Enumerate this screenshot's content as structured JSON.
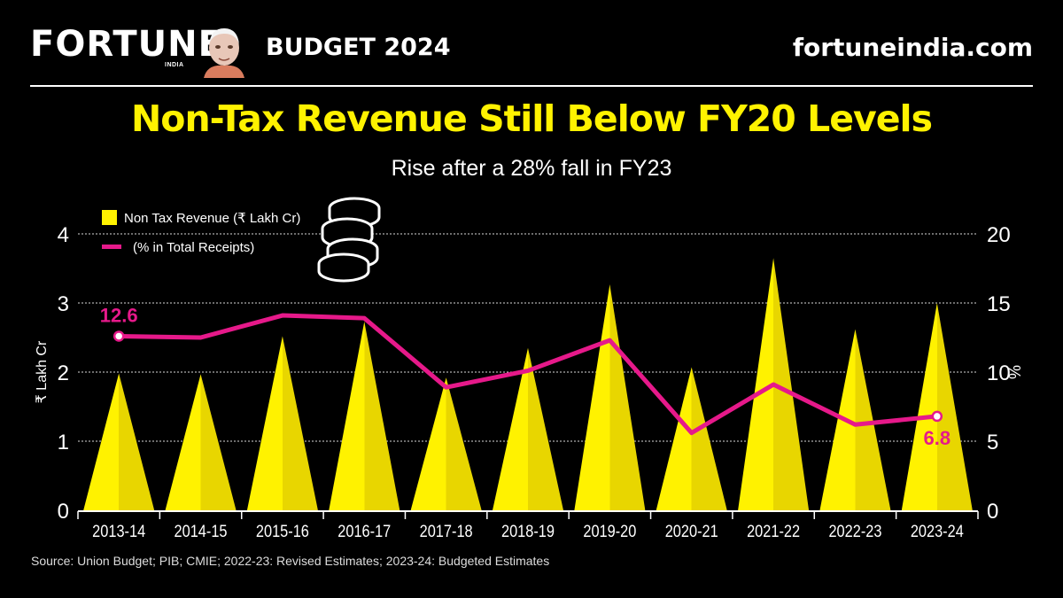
{
  "header": {
    "logo": "FORTUNE",
    "logo_sub": "INDIA",
    "budget_label": "BUDGET 2024",
    "site": "fortuneindia.com"
  },
  "colors": {
    "accent": "#fff200",
    "line": "#e6198a",
    "background": "#000000"
  },
  "source": "Source: Union Budget; PIB; CMIE; 2022-23: Revised Estimates; 2023-24: Budgeted Estimates",
  "chart_data": {
    "type": "bar",
    "title": "Non-Tax Revenue Still Below FY20 Levels",
    "subtitle": "Rise after a 28% fall in FY23",
    "categories": [
      "2013-14",
      "2014-15",
      "2015-16",
      "2016-17",
      "2017-18",
      "2018-19",
      "2019-20",
      "2020-21",
      "2021-22",
      "2022-23",
      "2023-24"
    ],
    "series": [
      {
        "name": "Non Tax Revenue  (₹ Lakh Cr)",
        "axis": "left",
        "style": "triangle",
        "values": [
          1.98,
          1.97,
          2.52,
          2.73,
          1.92,
          2.35,
          3.27,
          2.07,
          3.65,
          2.62,
          3.0
        ]
      },
      {
        "name": "(% in Total Receipts)",
        "axis": "right",
        "style": "line",
        "values": [
          12.6,
          12.5,
          14.1,
          13.9,
          8.9,
          10.1,
          12.3,
          5.6,
          9.1,
          6.2,
          6.8
        ]
      }
    ],
    "ylabel": "₹ Lakh Cr",
    "y2label": "%",
    "ylim": [
      0,
      4
    ],
    "y2lim": [
      0,
      20
    ],
    "yticks": [
      "0",
      "1",
      "2",
      "3",
      "4"
    ],
    "y2ticks": [
      "0",
      "5",
      "10",
      "15",
      "20"
    ],
    "annotations": [
      "12.6",
      "6.8"
    ],
    "legend_position": "top-left"
  }
}
